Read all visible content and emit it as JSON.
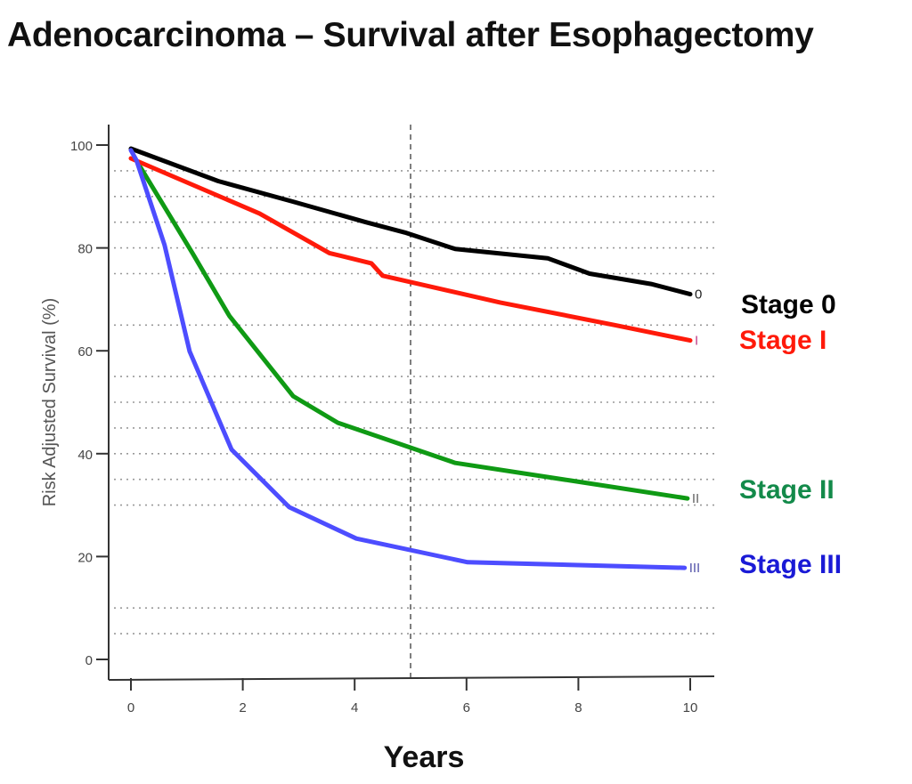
{
  "chart_data": {
    "type": "line",
    "title": "Adenocarcinoma – Survival after Esophagectomy",
    "xlabel": "Years",
    "ylabel": "Risk Adjusted Survival (%)",
    "xlim": [
      0,
      10
    ],
    "ylim": [
      0,
      100
    ],
    "xticks": [
      0,
      2,
      4,
      6,
      8,
      10
    ],
    "yticks": [
      0,
      20,
      40,
      60,
      80,
      100
    ],
    "grid": {
      "style": "dotted horizontal",
      "y_values": [
        95,
        90,
        85,
        80,
        75,
        65,
        55,
        50,
        45,
        40,
        35,
        30,
        10,
        5
      ]
    },
    "reference_line": {
      "orientation": "vertical",
      "x": 5,
      "style": "dashed"
    },
    "legend_placement": "right",
    "series": [
      {
        "name": "Stage 0",
        "end_label": "0",
        "color": "#000000",
        "points": [
          [
            0,
            99.3
          ],
          [
            1.56,
            93
          ],
          [
            2.9,
            89
          ],
          [
            4.2,
            85
          ],
          [
            4.9,
            83
          ],
          [
            5.8,
            79.8
          ],
          [
            7.45,
            78
          ],
          [
            8.2,
            75
          ],
          [
            9.3,
            73
          ],
          [
            10,
            71
          ]
        ]
      },
      {
        "name": "Stage I",
        "end_label": "I",
        "color": "#ff1a0a",
        "points": [
          [
            0,
            97.4
          ],
          [
            2.3,
            86.7
          ],
          [
            3.55,
            79
          ],
          [
            4.3,
            77
          ],
          [
            4.5,
            74.6
          ],
          [
            6.6,
            69.4
          ],
          [
            8.65,
            65
          ],
          [
            10,
            62
          ]
        ]
      },
      {
        "name": "Stage II",
        "end_label": "II",
        "color": "#0f9a14",
        "legend_color": "#138a4a",
        "points": [
          [
            0.17,
            95.7
          ],
          [
            1.1,
            79
          ],
          [
            1.76,
            66.8
          ],
          [
            2.9,
            51.2
          ],
          [
            3.7,
            46
          ],
          [
            5.8,
            38.2
          ],
          [
            7.85,
            34.8
          ],
          [
            9.95,
            31.3
          ]
        ]
      },
      {
        "name": "Stage III",
        "end_label": "III",
        "color": "#4d4dff",
        "legend_color": "#1a1ad6",
        "points": [
          [
            0,
            99
          ],
          [
            0.1,
            97
          ],
          [
            0.6,
            80.6
          ],
          [
            1.05,
            59.9
          ],
          [
            1.8,
            40.8
          ],
          [
            2.83,
            29.6
          ],
          [
            4.03,
            23.5
          ],
          [
            6.02,
            18.9
          ],
          [
            9.9,
            17.8
          ]
        ]
      }
    ]
  },
  "legend": [
    {
      "label": "Stage 0",
      "color": "#000000"
    },
    {
      "label": "Stage I",
      "color": "#ff1a0a"
    },
    {
      "label": "Stage II",
      "color": "#138a4a"
    },
    {
      "label": "Stage III",
      "color": "#1a1ad6"
    }
  ]
}
